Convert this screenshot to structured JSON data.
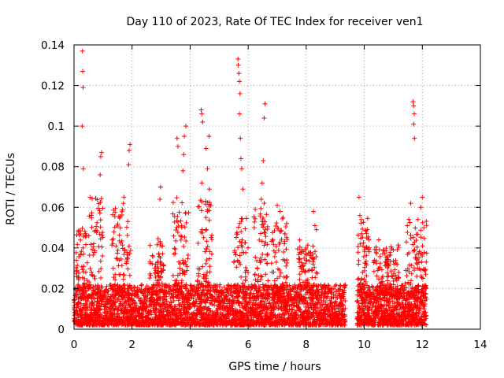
{
  "chart_data": {
    "type": "scatter",
    "title": "Day 110 of 2023, Rate Of TEC Index for receiver ven1",
    "xlabel": "GPS time / hours",
    "ylabel": "ROTI / TECUs",
    "xlim": [
      0,
      14
    ],
    "ylim": [
      0,
      0.14
    ],
    "x_ticks": [
      "0",
      "2",
      "4",
      "6",
      "8",
      "10",
      "12",
      "14"
    ],
    "y_ticks": [
      "0",
      "0.02",
      "0.04",
      "0.06",
      "0.08",
      "0.1",
      "0.12",
      "0.14"
    ],
    "x_tick_values": [
      0,
      2,
      4,
      6,
      8,
      10,
      12,
      14
    ],
    "y_tick_values": [
      0,
      0.02,
      0.04,
      0.06,
      0.08,
      0.1,
      0.12,
      0.14
    ],
    "grid": true,
    "marker": "plus",
    "color": "#ff0000",
    "notable_points": [
      {
        "x": 0.29,
        "y": 0.137
      },
      {
        "x": 0.3,
        "y": 0.127
      },
      {
        "x": 0.31,
        "y": 0.119
      },
      {
        "x": 0.28,
        "y": 0.1
      },
      {
        "x": 0.32,
        "y": 0.079
      },
      {
        "x": 0.95,
        "y": 0.087
      },
      {
        "x": 0.92,
        "y": 0.085
      },
      {
        "x": 0.9,
        "y": 0.076
      },
      {
        "x": 1.93,
        "y": 0.091
      },
      {
        "x": 1.9,
        "y": 0.088
      },
      {
        "x": 1.88,
        "y": 0.081
      },
      {
        "x": 1.72,
        "y": 0.065
      },
      {
        "x": 1.7,
        "y": 0.062
      },
      {
        "x": 2.98,
        "y": 0.07
      },
      {
        "x": 2.96,
        "y": 0.064
      },
      {
        "x": 3.55,
        "y": 0.094
      },
      {
        "x": 3.58,
        "y": 0.09
      },
      {
        "x": 3.85,
        "y": 0.1
      },
      {
        "x": 3.8,
        "y": 0.095
      },
      {
        "x": 3.78,
        "y": 0.086
      },
      {
        "x": 3.75,
        "y": 0.078
      },
      {
        "x": 4.38,
        "y": 0.108
      },
      {
        "x": 4.4,
        "y": 0.106
      },
      {
        "x": 4.43,
        "y": 0.102
      },
      {
        "x": 4.65,
        "y": 0.095
      },
      {
        "x": 4.55,
        "y": 0.089
      },
      {
        "x": 4.6,
        "y": 0.079
      },
      {
        "x": 4.4,
        "y": 0.072
      },
      {
        "x": 4.66,
        "y": 0.069
      },
      {
        "x": 5.65,
        "y": 0.133
      },
      {
        "x": 5.66,
        "y": 0.13
      },
      {
        "x": 5.68,
        "y": 0.126
      },
      {
        "x": 5.7,
        "y": 0.122
      },
      {
        "x": 5.72,
        "y": 0.116
      },
      {
        "x": 5.7,
        "y": 0.106
      },
      {
        "x": 5.73,
        "y": 0.094
      },
      {
        "x": 5.75,
        "y": 0.084
      },
      {
        "x": 5.78,
        "y": 0.079
      },
      {
        "x": 5.82,
        "y": 0.069
      },
      {
        "x": 6.58,
        "y": 0.111
      },
      {
        "x": 6.55,
        "y": 0.104
      },
      {
        "x": 6.52,
        "y": 0.083
      },
      {
        "x": 6.48,
        "y": 0.072
      },
      {
        "x": 6.45,
        "y": 0.064
      },
      {
        "x": 6.55,
        "y": 0.062
      },
      {
        "x": 7.0,
        "y": 0.061
      },
      {
        "x": 7.1,
        "y": 0.058
      },
      {
        "x": 7.2,
        "y": 0.055
      },
      {
        "x": 8.25,
        "y": 0.058
      },
      {
        "x": 8.3,
        "y": 0.051
      },
      {
        "x": 8.35,
        "y": 0.049
      },
      {
        "x": 9.82,
        "y": 0.065
      },
      {
        "x": 9.85,
        "y": 0.056
      },
      {
        "x": 9.9,
        "y": 0.054
      },
      {
        "x": 10.5,
        "y": 0.044
      },
      {
        "x": 11.0,
        "y": 0.039
      },
      {
        "x": 11.6,
        "y": 0.062
      },
      {
        "x": 11.68,
        "y": 0.112
      },
      {
        "x": 11.7,
        "y": 0.11
      },
      {
        "x": 11.72,
        "y": 0.106
      },
      {
        "x": 11.7,
        "y": 0.101
      },
      {
        "x": 11.73,
        "y": 0.094
      },
      {
        "x": 11.85,
        "y": 0.054
      },
      {
        "x": 12.0,
        "y": 0.065
      },
      {
        "x": 11.95,
        "y": 0.06
      },
      {
        "x": 12.05,
        "y": 0.05
      }
    ],
    "dense_segments": [
      {
        "x_range": [
          0.0,
          9.35
        ],
        "y_range": [
          0.002,
          0.022
        ]
      },
      {
        "x_range": [
          9.75,
          12.15
        ],
        "y_range": [
          0.002,
          0.022
        ]
      }
    ],
    "burst_envelopes": [
      {
        "x_range": [
          0.05,
          0.5
        ],
        "y_range": [
          0.015,
          0.05
        ]
      },
      {
        "x_range": [
          0.5,
          1.0
        ],
        "y_range": [
          0.015,
          0.065
        ]
      },
      {
        "x_range": [
          1.3,
          1.95
        ],
        "y_range": [
          0.015,
          0.06
        ]
      },
      {
        "x_range": [
          2.6,
          3.1
        ],
        "y_range": [
          0.015,
          0.045
        ]
      },
      {
        "x_range": [
          3.4,
          3.95
        ],
        "y_range": [
          0.015,
          0.065
        ]
      },
      {
        "x_range": [
          4.25,
          4.75
        ],
        "y_range": [
          0.015,
          0.065
        ]
      },
      {
        "x_range": [
          5.5,
          6.0
        ],
        "y_range": [
          0.015,
          0.055
        ]
      },
      {
        "x_range": [
          6.2,
          6.7
        ],
        "y_range": [
          0.015,
          0.06
        ]
      },
      {
        "x_range": [
          6.8,
          7.35
        ],
        "y_range": [
          0.015,
          0.055
        ]
      },
      {
        "x_range": [
          7.7,
          8.4
        ],
        "y_range": [
          0.015,
          0.045
        ]
      },
      {
        "x_range": [
          9.75,
          10.2
        ],
        "y_range": [
          0.015,
          0.055
        ]
      },
      {
        "x_range": [
          10.3,
          11.2
        ],
        "y_range": [
          0.015,
          0.042
        ]
      },
      {
        "x_range": [
          11.4,
          12.15
        ],
        "y_range": [
          0.015,
          0.055
        ]
      }
    ]
  }
}
